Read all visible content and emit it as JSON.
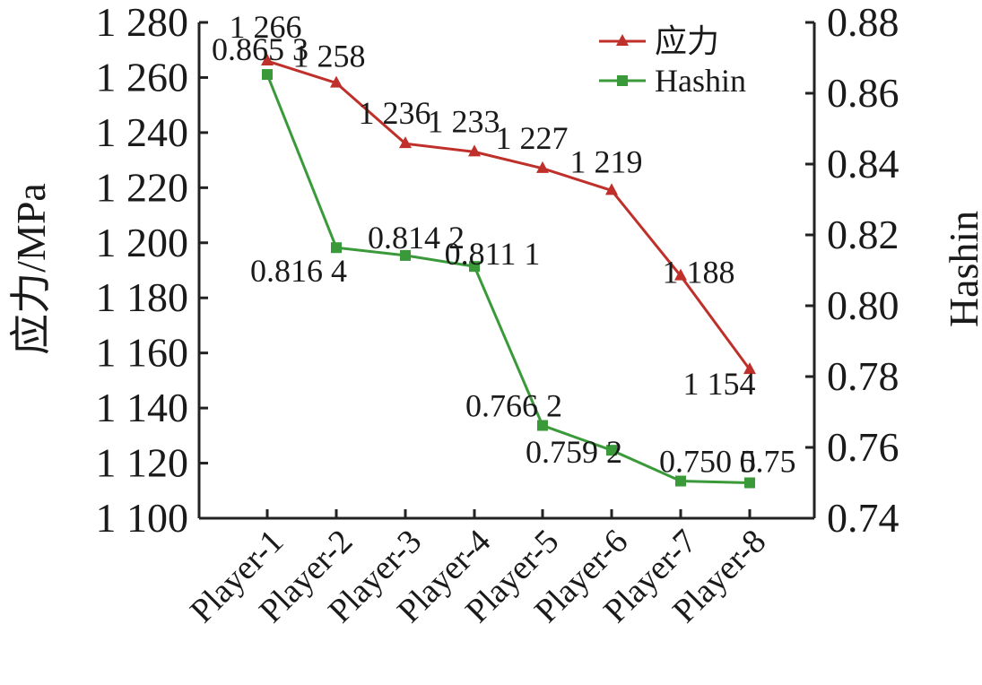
{
  "chart_data": {
    "type": "line",
    "categories": [
      "Player-1",
      "Player-2",
      "Player-3",
      "Player-4",
      "Player-5",
      "Player-6",
      "Player-7",
      "Player-8"
    ],
    "series": [
      {
        "name": "应力",
        "axis": "left",
        "color": "#c0302a",
        "marker": "triangle",
        "values": [
          1266,
          1258,
          1236,
          1233,
          1227,
          1219,
          1188,
          1154
        ],
        "labels": [
          "1 266",
          "1 258",
          "1 236",
          "1 233",
          "1 227",
          "1 219",
          "1 188",
          "1 154"
        ]
      },
      {
        "name": "Hashin",
        "axis": "right",
        "color": "#3a9a3a",
        "marker": "square",
        "values": [
          0.8653,
          0.8164,
          0.8142,
          0.8111,
          0.7662,
          0.7592,
          0.7505,
          0.75
        ],
        "labels": [
          "0.865 3",
          "0.816 4",
          "0.814 2",
          "0.811 1",
          "0.766 2",
          "0.759 2",
          "0.750 5",
          "0.75"
        ]
      }
    ],
    "y_left": {
      "label": "应力/MPa",
      "min": 1100,
      "max": 1280,
      "ticks": [
        1100,
        1120,
        1140,
        1160,
        1180,
        1200,
        1220,
        1240,
        1260,
        1280
      ],
      "tick_labels": [
        "1 100",
        "1 120",
        "1 140",
        "1 160",
        "1 180",
        "1 200",
        "1 220",
        "1 240",
        "1 260",
        "1 280"
      ]
    },
    "y_right": {
      "label": "Hashin",
      "min": 0.74,
      "max": 0.88,
      "ticks": [
        0.74,
        0.76,
        0.78,
        0.8,
        0.82,
        0.84,
        0.86,
        0.88
      ],
      "tick_labels": [
        "0.74",
        "0.76",
        "0.78",
        "0.80",
        "0.82",
        "0.84",
        "0.86",
        "0.88"
      ]
    },
    "legend": "top-right",
    "grid": false
  }
}
